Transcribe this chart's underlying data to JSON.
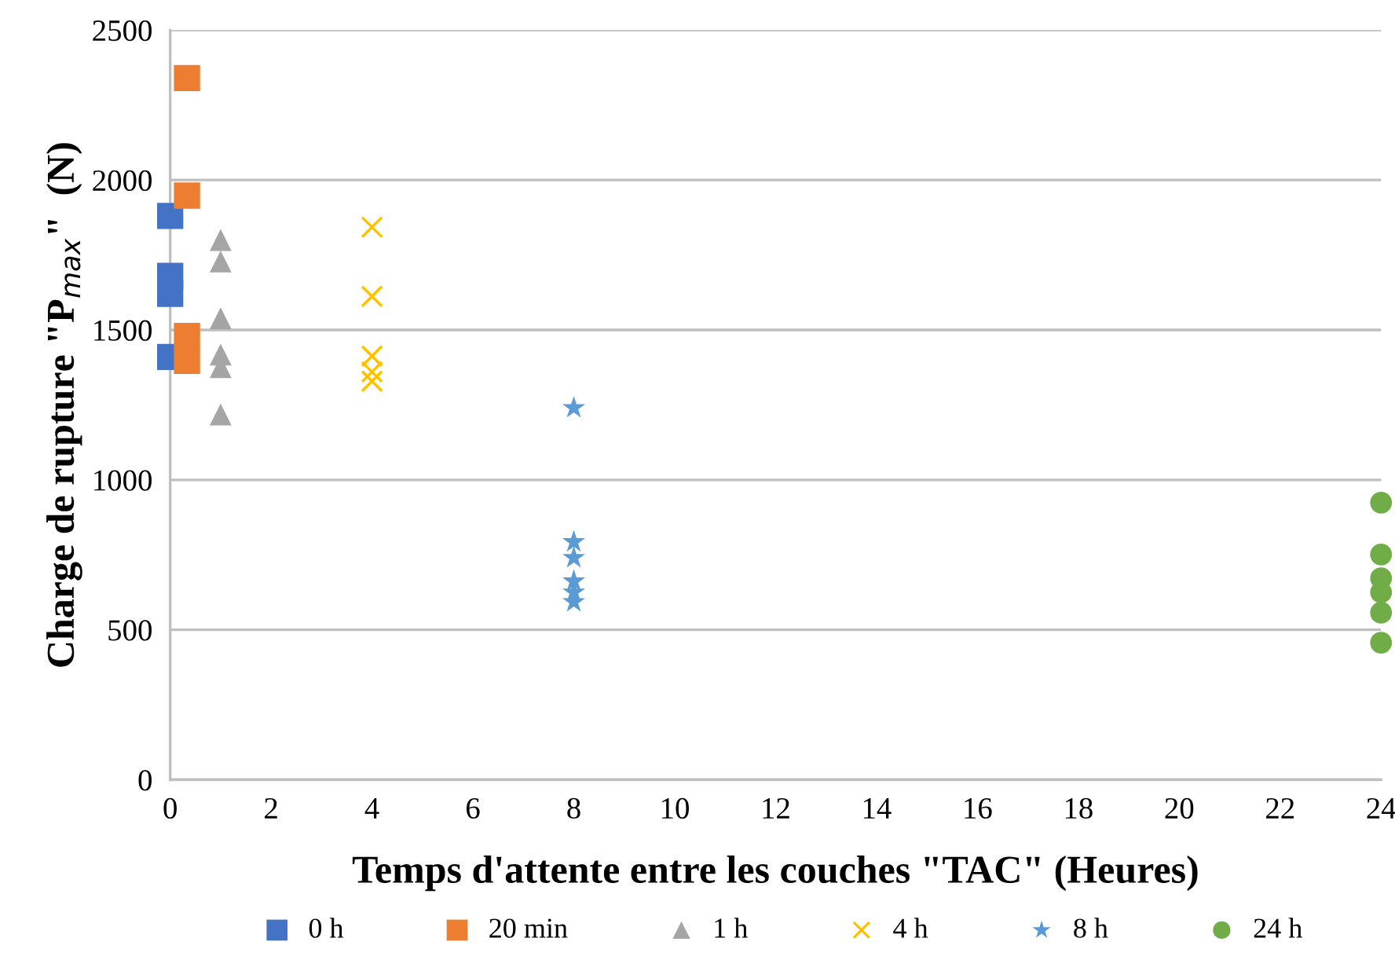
{
  "chart_data": {
    "type": "scatter",
    "xlabel": "Temps d'attente entre les couches \"TAC\" (Heures)",
    "ylabel": "Charge de rupture \"P$_{max}$\"  (N)",
    "xlim": [
      0,
      24
    ],
    "xticks": [
      0,
      2,
      4,
      6,
      8,
      10,
      12,
      14,
      16,
      18,
      20,
      22,
      24
    ],
    "ylim": [
      0,
      2500
    ],
    "yticks": [
      0,
      500,
      1000,
      1500,
      2000,
      2500
    ],
    "grid": "y",
    "legend": "bottom",
    "series": [
      {
        "name": "0 h",
        "color": "#4472c4",
        "marker": "square",
        "x": [
          0,
          0,
          0,
          0
        ],
        "values": [
          1880,
          1680,
          1620,
          1410
        ]
      },
      {
        "name": "20 min",
        "color": "#ed7d31",
        "marker": "square",
        "x": [
          0.333,
          0.333,
          0.333,
          0.333
        ],
        "values": [
          2340,
          1948,
          1480,
          1397
        ]
      },
      {
        "name": "1 h",
        "color": "#a5a5a5",
        "marker": "triangle",
        "x": [
          1,
          1,
          1,
          1,
          1,
          1
        ],
        "values": [
          1800,
          1728,
          1539,
          1418,
          1376,
          1218
        ]
      },
      {
        "name": "4 h",
        "color": "#ffc000",
        "marker": "cross",
        "x": [
          4,
          4,
          4,
          4,
          4
        ],
        "values": [
          1843,
          1612,
          1413,
          1360,
          1329
        ]
      },
      {
        "name": "8 h",
        "color": "#5b9bd5",
        "marker": "star",
        "x": [
          8,
          8,
          8,
          8,
          8,
          8
        ],
        "values": [
          1240,
          793,
          740,
          662,
          625,
          593
        ]
      },
      {
        "name": "24 h",
        "color": "#70ad47",
        "marker": "circle",
        "x": [
          24,
          24,
          24,
          24,
          24,
          24
        ],
        "values": [
          924,
          751,
          672,
          625,
          557,
          457
        ]
      }
    ]
  }
}
